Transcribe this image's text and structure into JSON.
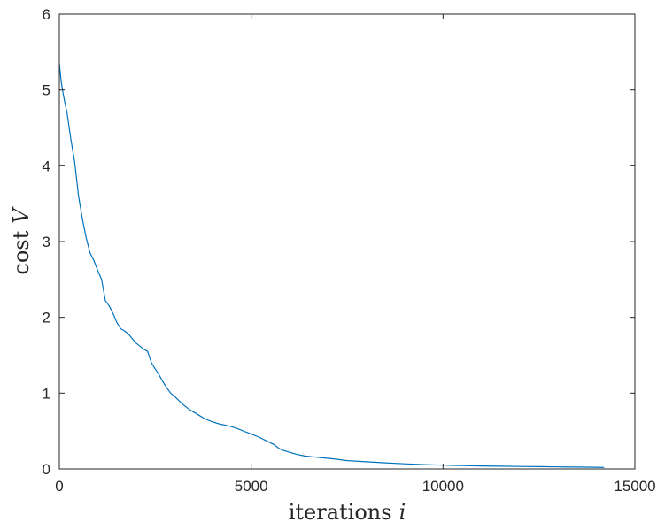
{
  "chart_data": {
    "type": "line",
    "title": "",
    "xlabel": "iterations",
    "xlabel_var": "i",
    "ylabel": "cost",
    "ylabel_var": "V",
    "xlim": [
      0,
      15000
    ],
    "ylim": [
      0,
      6
    ],
    "x_ticks": [
      0,
      5000,
      10000,
      15000
    ],
    "x_tick_labels": [
      "0",
      "5000",
      "10000",
      "15000"
    ],
    "y_ticks": [
      0,
      1,
      2,
      3,
      4,
      5,
      6
    ],
    "y_tick_labels": [
      "0",
      "1",
      "2",
      "3",
      "4",
      "5",
      "6"
    ],
    "grid": false,
    "box": true,
    "colors": {
      "series": "#0072bd",
      "axes": "#262626"
    },
    "series": [
      {
        "x": [
          0,
          50,
          100,
          150,
          200,
          300,
          400,
          500,
          600,
          700,
          800,
          900,
          1000,
          1100,
          1200,
          1300,
          1400,
          1500,
          1600,
          1700,
          1800,
          1900,
          2000,
          2100,
          2200,
          2300,
          2400,
          2500,
          2600,
          2700,
          2800,
          2900,
          3000,
          3200,
          3400,
          3600,
          3800,
          4000,
          4200,
          4400,
          4600,
          4800,
          5000,
          5200,
          5400,
          5600,
          5700,
          5800,
          6000,
          6200,
          6400,
          6600,
          6800,
          7000,
          7200,
          7500,
          8000,
          8500,
          9000,
          9500,
          10000,
          10500,
          11000,
          11500,
          12000,
          12500,
          13000,
          13500,
          14000,
          14200
        ],
        "values": [
          5.35,
          5.1,
          4.95,
          4.82,
          4.7,
          4.35,
          4.05,
          3.6,
          3.3,
          3.05,
          2.85,
          2.75,
          2.62,
          2.5,
          2.22,
          2.15,
          2.05,
          1.93,
          1.85,
          1.82,
          1.78,
          1.72,
          1.66,
          1.62,
          1.58,
          1.55,
          1.4,
          1.32,
          1.24,
          1.15,
          1.07,
          1.0,
          0.96,
          0.86,
          0.78,
          0.72,
          0.66,
          0.62,
          0.59,
          0.57,
          0.54,
          0.5,
          0.46,
          0.42,
          0.37,
          0.32,
          0.28,
          0.25,
          0.22,
          0.19,
          0.17,
          0.16,
          0.15,
          0.14,
          0.13,
          0.11,
          0.095,
          0.08,
          0.068,
          0.057,
          0.05,
          0.045,
          0.04,
          0.036,
          0.033,
          0.03,
          0.027,
          0.024,
          0.022,
          0.02
        ]
      }
    ]
  }
}
